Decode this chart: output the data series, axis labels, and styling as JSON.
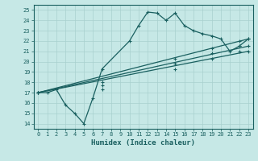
{
  "xlabel": "Humidex (Indice chaleur)",
  "xlim": [
    -0.5,
    23.5
  ],
  "ylim": [
    13.5,
    25.5
  ],
  "xticks": [
    0,
    1,
    2,
    3,
    4,
    5,
    6,
    7,
    8,
    9,
    10,
    11,
    12,
    13,
    14,
    15,
    16,
    17,
    18,
    19,
    20,
    21,
    22,
    23
  ],
  "yticks": [
    14,
    15,
    16,
    17,
    18,
    19,
    20,
    21,
    22,
    23,
    24,
    25
  ],
  "bg_color": "#c6e8e6",
  "grid_color": "#a8d0ce",
  "line_color": "#1a6060",
  "lines": [
    {
      "x": [
        0,
        1,
        2,
        3,
        4,
        5,
        6,
        7,
        10,
        11,
        12,
        13,
        14,
        15,
        16,
        17,
        18,
        19,
        20,
        21,
        22,
        23
      ],
      "y": [
        17,
        17,
        17.3,
        15.8,
        15.0,
        14.0,
        16.5,
        19.3,
        22.0,
        23.5,
        24.8,
        24.7,
        24.0,
        24.7,
        23.5,
        23.0,
        22.7,
        22.5,
        22.2,
        21.0,
        21.5,
        22.2
      ]
    },
    {
      "x": [
        0,
        23
      ],
      "y": [
        17.0,
        22.2
      ]
    },
    {
      "x": [
        0,
        23
      ],
      "y": [
        17.0,
        21.5
      ]
    },
    {
      "x": [
        0,
        23
      ],
      "y": [
        17.0,
        21.0
      ]
    }
  ],
  "markers": [
    {
      "x": [
        0,
        1,
        2,
        3,
        4,
        5,
        6,
        7,
        10,
        11,
        12,
        13,
        14,
        15,
        16,
        17,
        18,
        19,
        20,
        21,
        22,
        23
      ],
      "y": [
        17,
        17,
        17.3,
        15.8,
        15.0,
        14.0,
        16.5,
        19.3,
        22.0,
        23.5,
        24.8,
        24.7,
        24.0,
        24.7,
        23.5,
        23.0,
        22.7,
        22.5,
        22.2,
        21.0,
        21.5,
        22.2
      ]
    },
    {
      "x": [
        0,
        7,
        15,
        19,
        22,
        23
      ],
      "y": [
        17.0,
        18.0,
        20.3,
        21.3,
        22.0,
        22.2
      ]
    },
    {
      "x": [
        0,
        7,
        15,
        19,
        22,
        23
      ],
      "y": [
        17.0,
        17.7,
        19.8,
        20.8,
        21.5,
        21.5
      ]
    },
    {
      "x": [
        0,
        7,
        15,
        19,
        22,
        23
      ],
      "y": [
        17.0,
        17.3,
        19.3,
        20.3,
        21.0,
        21.0
      ]
    }
  ]
}
